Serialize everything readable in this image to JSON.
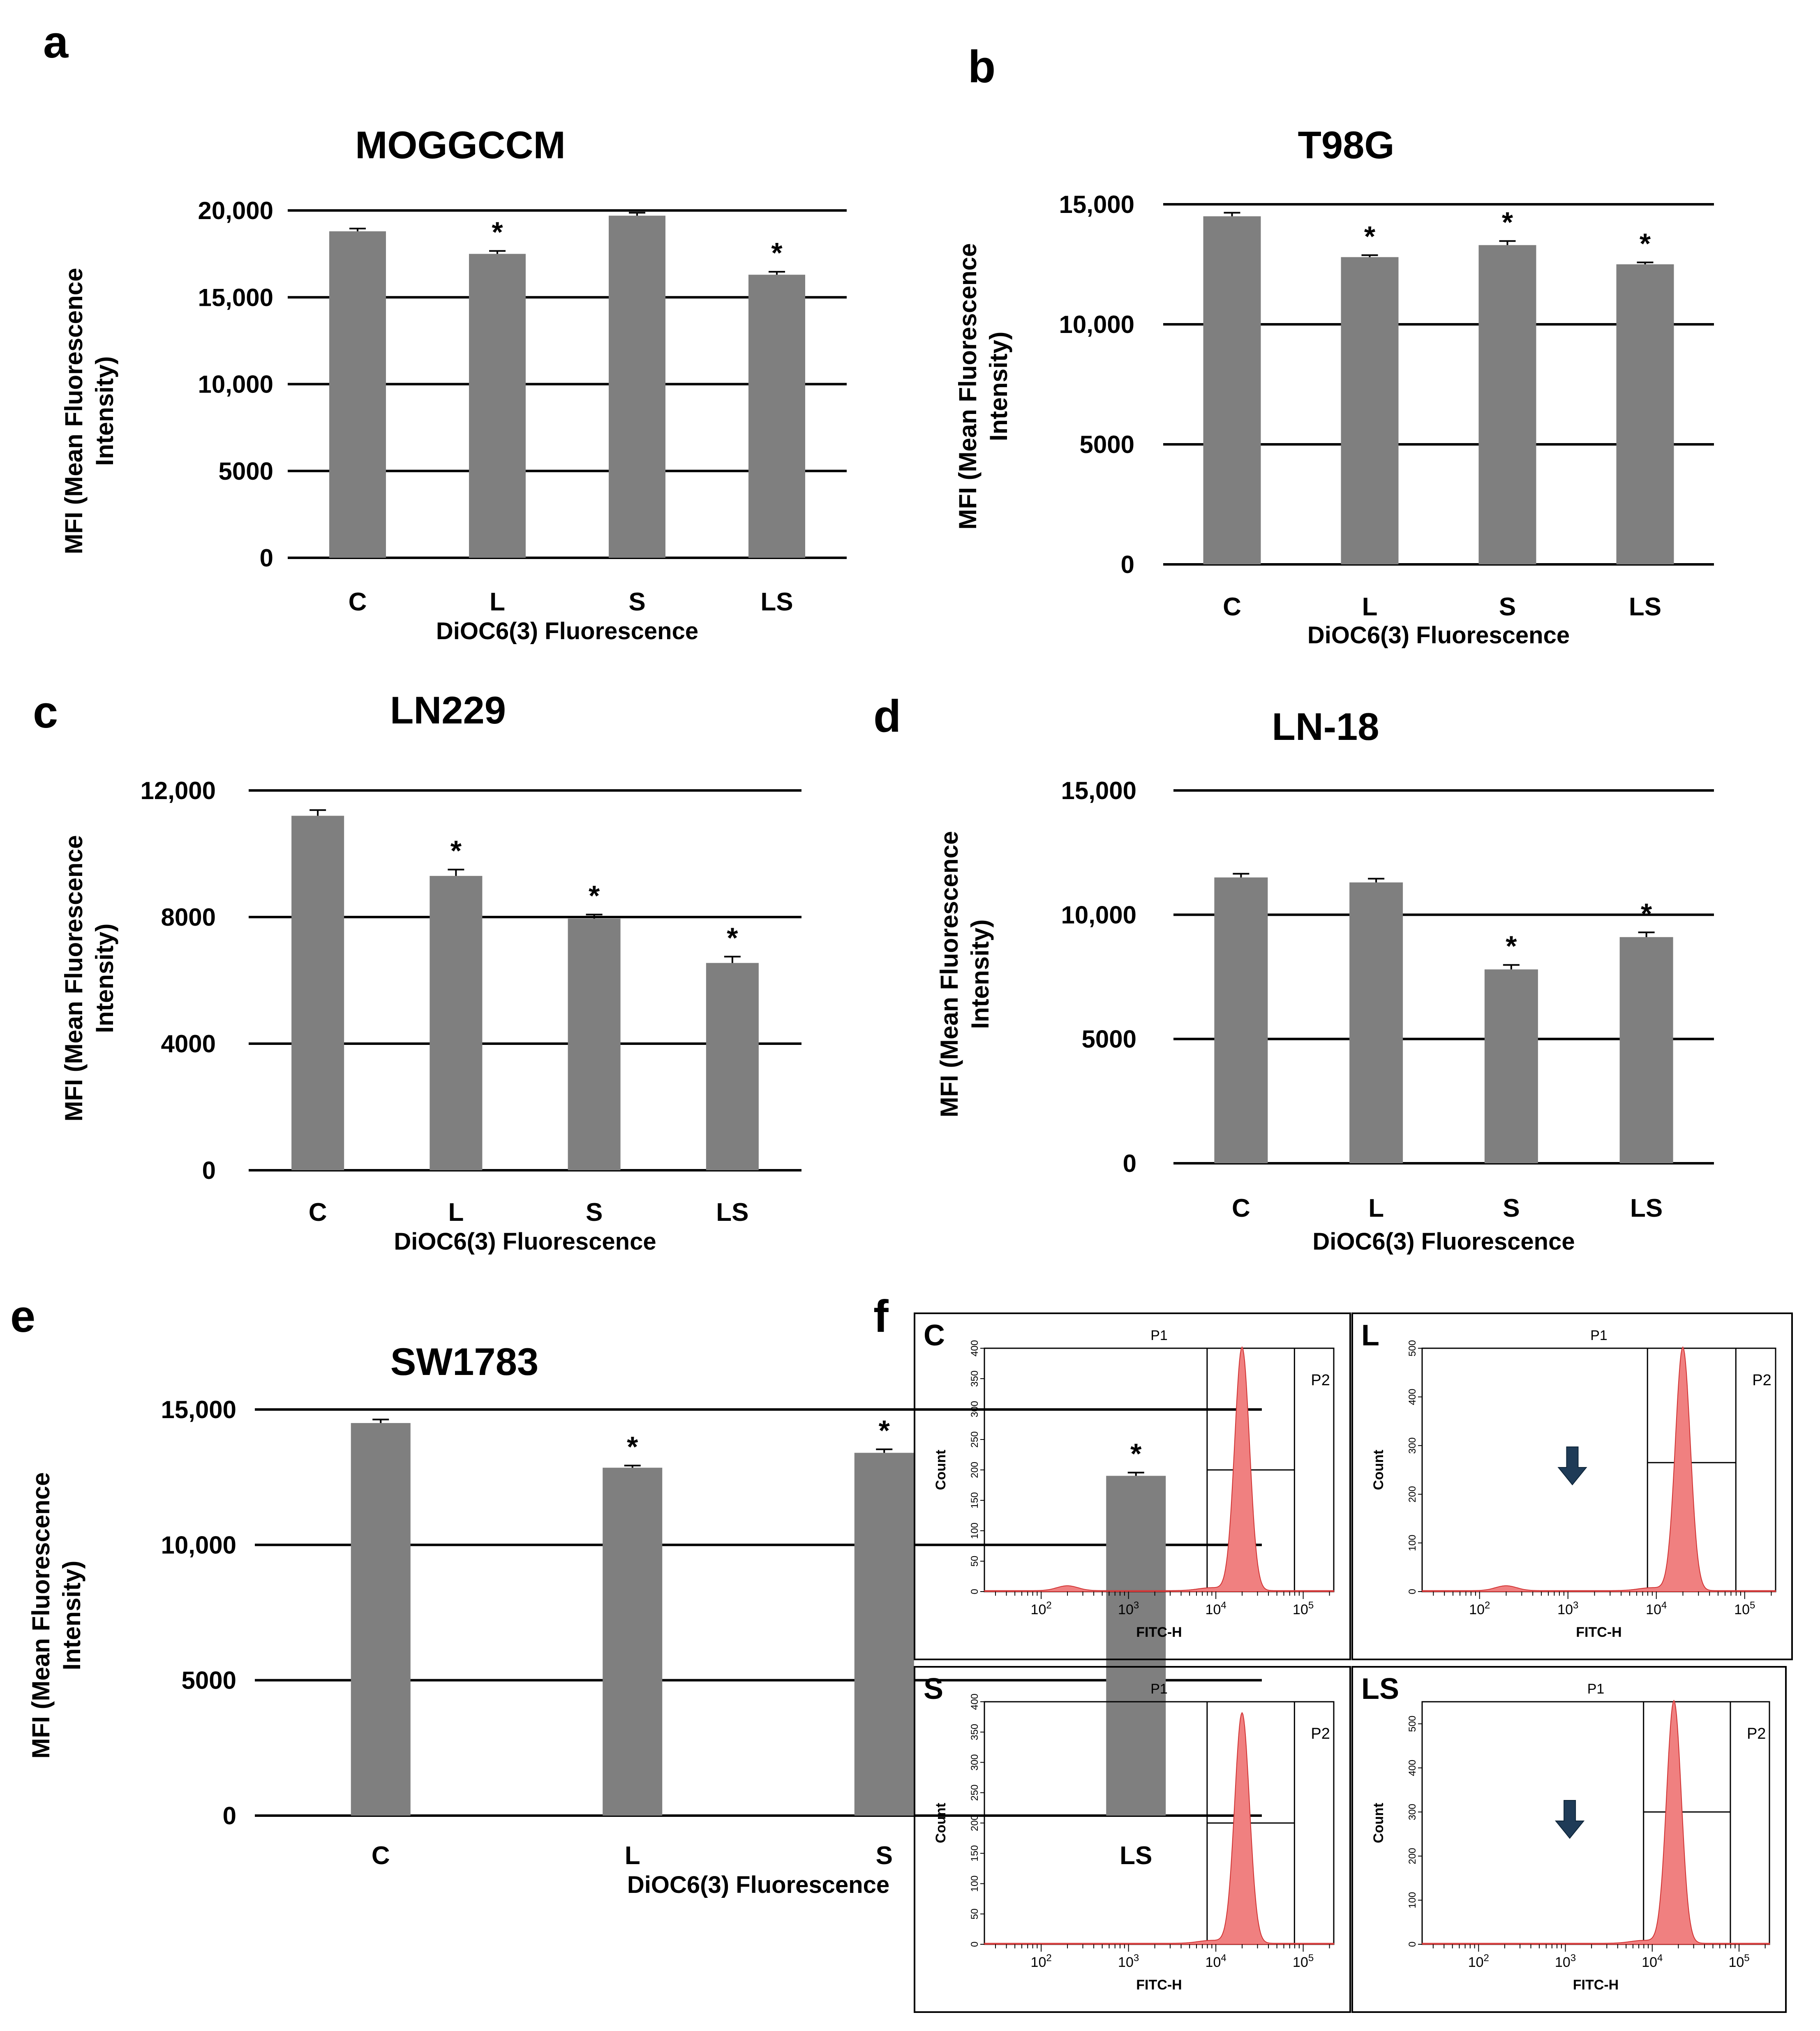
{
  "chart_data": [
    {
      "panel": "a",
      "type": "bar",
      "title": "MOGGCCM",
      "categories": [
        "C",
        "L",
        "S",
        "LS"
      ],
      "values": [
        18800,
        17500,
        19700,
        16300
      ],
      "errors": [
        160,
        170,
        170,
        170
      ],
      "significant": [
        false,
        true,
        false,
        true
      ],
      "star": "*",
      "ylabel": "MFI (Mean Fluorescence Intensity)",
      "xlabel": "DiOC6(3) Fluorescence",
      "ylim": [
        0,
        20000
      ],
      "yticks": [
        0,
        5000,
        10000,
        15000,
        20000
      ],
      "ytick_labels": [
        "0",
        "5000",
        "10,000",
        "15,000",
        "20,000"
      ],
      "grid": true
    },
    {
      "panel": "b",
      "type": "bar",
      "title": "T98G",
      "categories": [
        "C",
        "L",
        "S",
        "LS"
      ],
      "values": [
        14500,
        12800,
        13300,
        12500
      ],
      "errors": [
        150,
        80,
        170,
        80
      ],
      "significant": [
        false,
        true,
        true,
        true
      ],
      "star": "*",
      "ylabel": "MFI (Mean Fluorescence Intensity)",
      "xlabel": "DiOC6(3) Fluorescence",
      "ylim": [
        0,
        15000
      ],
      "yticks": [
        0,
        5000,
        10000,
        15000
      ],
      "ytick_labels": [
        "0",
        "5000",
        "10,000",
        "15,000"
      ],
      "grid": true
    },
    {
      "panel": "c",
      "type": "bar",
      "title": "LN229",
      "categories": [
        "C",
        "L",
        "S",
        "LS"
      ],
      "values": [
        11200,
        9300,
        7950,
        6550
      ],
      "errors": [
        180,
        200,
        130,
        200
      ],
      "significant": [
        false,
        true,
        true,
        true
      ],
      "star": "*",
      "ylabel": "MFI (Mean Fluorescence Intensity)",
      "xlabel": "DiOC6(3) Fluorescence",
      "ylim": [
        0,
        12000
      ],
      "yticks": [
        0,
        4000,
        8000,
        12000
      ],
      "ytick_labels": [
        "0",
        "4000",
        "8000",
        "12,000"
      ],
      "grid": true
    },
    {
      "panel": "d",
      "type": "bar",
      "title": "LN-18",
      "categories": [
        "C",
        "L",
        "S",
        "LS"
      ],
      "values": [
        11500,
        11300,
        7800,
        9100
      ],
      "errors": [
        150,
        150,
        180,
        190
      ],
      "significant": [
        false,
        false,
        true,
        true
      ],
      "star": "*",
      "ylabel": "MFI (Mean Fluorescence Intensity)",
      "xlabel": "DiOC6(3) Fluorescence",
      "ylim": [
        0,
        15000
      ],
      "yticks": [
        0,
        5000,
        10000,
        15000
      ],
      "ytick_labels": [
        "0",
        "5000",
        "10,000",
        "15,000"
      ],
      "grid": true
    },
    {
      "panel": "e",
      "type": "bar",
      "title": "SW1783",
      "categories": [
        "C",
        "L",
        "S",
        "LS"
      ],
      "values": [
        14500,
        12850,
        13400,
        12550
      ],
      "errors": [
        130,
        80,
        130,
        120
      ],
      "significant": [
        false,
        true,
        true,
        true
      ],
      "star": "*",
      "ylabel": "MFI (Mean Fluorescence Intensity)",
      "xlabel": "DiOC6(3) Fluorescence",
      "ylim": [
        0,
        15000
      ],
      "yticks": [
        0,
        5000,
        10000,
        15000
      ],
      "ytick_labels": [
        "0",
        "5000",
        "10,000",
        "15,000"
      ],
      "grid": true
    }
  ],
  "panel_letters": [
    "a",
    "b",
    "c",
    "d",
    "e",
    "f"
  ],
  "flow": {
    "panel": "f",
    "gate_all": "P1",
    "gate_marker": "P2",
    "ylabel": "Count",
    "xlabel": "FITC-H",
    "x_tick_labels": [
      "10",
      "10",
      "10",
      "10"
    ],
    "x_tick_exponents": [
      "2",
      "3",
      "4",
      "5"
    ],
    "color": "#f08080",
    "plots": [
      {
        "label": "C",
        "y_ticks": [
          "0",
          "50",
          "100",
          "150",
          "200",
          "250",
          "300",
          "350",
          "400"
        ],
        "ymax": 400,
        "peak_log": 4.3,
        "peak_count": 400,
        "marker_count": 200,
        "debris": true,
        "arrow": false
      },
      {
        "label": "L",
        "y_ticks": [
          "0",
          "100",
          "200",
          "300",
          "400",
          "500"
        ],
        "ymax": 500,
        "peak_log": 4.3,
        "peak_count": 500,
        "marker_count": 265,
        "debris": true,
        "arrow": true
      },
      {
        "label": "S",
        "y_ticks": [
          "0",
          "50",
          "100",
          "150",
          "200",
          "250",
          "300",
          "350",
          "400"
        ],
        "ymax": 400,
        "peak_log": 4.3,
        "peak_count": 380,
        "marker_count": 200,
        "debris": false,
        "arrow": false
      },
      {
        "label": "LS",
        "y_ticks": [
          "0",
          "100",
          "200",
          "300",
          "400",
          "500"
        ],
        "ymax": 550,
        "peak_log": 4.25,
        "peak_count": 550,
        "marker_count": 300,
        "debris": false,
        "arrow": true
      }
    ]
  }
}
